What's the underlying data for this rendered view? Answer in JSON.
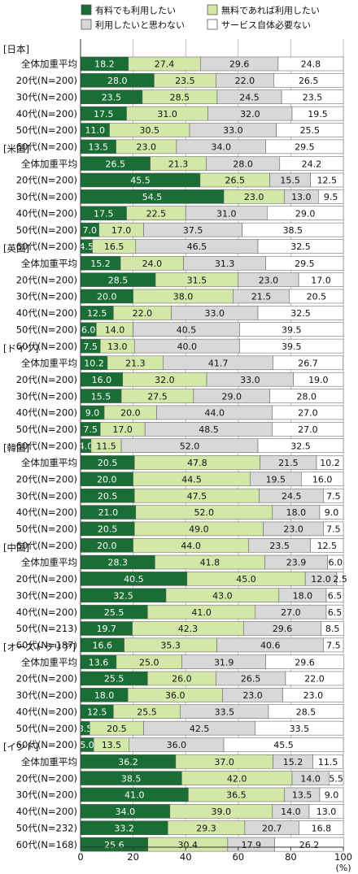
{
  "chart_data": {
    "type": "bar",
    "stacked": true,
    "orientation": "horizontal",
    "xlim": [
      0,
      100
    ],
    "xticks": [
      "0",
      "20",
      "40",
      "60",
      "80",
      "100"
    ],
    "xunit": "(%)",
    "legend_position": "top",
    "series": [
      {
        "name": "有料でも利用したい",
        "color": "#1a6e35"
      },
      {
        "name": "無料であれば利用したい",
        "color": "#d3e8a8"
      },
      {
        "name": "利用したいと思わない",
        "color": "#d8d8d8"
      },
      {
        "name": "サービス自体必要ない",
        "color": "#ffffff"
      }
    ],
    "groups": [
      {
        "name": "[日本]",
        "rows": [
          {
            "label": "全体加重平均",
            "values": [
              18.2,
              27.4,
              29.6,
              24.8
            ],
            "texts": [
              "18.2",
              "27.4",
              "29.6",
              "24.8"
            ]
          },
          {
            "label": "20代(N=200)",
            "values": [
              28.0,
              23.5,
              22.0,
              26.5
            ],
            "texts": [
              "28.0",
              "23.5",
              "22.0",
              "26.5"
            ]
          },
          {
            "label": "30代(N=200)",
            "values": [
              23.5,
              28.5,
              24.5,
              23.5
            ],
            "texts": [
              "23.5",
              "28.5",
              "24.5",
              "23.5"
            ]
          },
          {
            "label": "40代(N=200)",
            "values": [
              17.5,
              31.0,
              32.0,
              19.5
            ],
            "texts": [
              "17.5",
              "31.0",
              "32.0",
              "19.5"
            ]
          },
          {
            "label": "50代(N=200)",
            "values": [
              11.0,
              30.5,
              33.0,
              25.5
            ],
            "texts": [
              "11.0",
              "30.5",
              "33.0",
              "25.5"
            ]
          },
          {
            "label": "60代(N=200)",
            "values": [
              13.5,
              23.0,
              34.0,
              29.5
            ],
            "texts": [
              "13.5",
              "23.0",
              "34.0",
              "29.5"
            ]
          }
        ]
      },
      {
        "name": "[米国]",
        "rows": [
          {
            "label": "全体加重平均",
            "values": [
              26.5,
              21.3,
              28.0,
              24.2
            ],
            "texts": [
              "26.5",
              "21.3",
              "28.0",
              "24.2"
            ]
          },
          {
            "label": "20代(N=200)",
            "values": [
              45.5,
              26.5,
              15.5,
              12.5
            ],
            "texts": [
              "45.5",
              "26.5",
              "15.5",
              "12.5"
            ]
          },
          {
            "label": "30代(N=200)",
            "values": [
              54.5,
              23.0,
              13.0,
              9.5
            ],
            "texts": [
              "54.5",
              "23.0",
              "13.0",
              "9.5"
            ]
          },
          {
            "label": "40代(N=200)",
            "values": [
              17.5,
              22.5,
              31.0,
              29.0
            ],
            "texts": [
              "17.5",
              "22.5",
              "31.0",
              "29.0"
            ]
          },
          {
            "label": "50代(N=200)",
            "values": [
              7.0,
              17.0,
              37.5,
              38.5
            ],
            "texts": [
              "7.0",
              "17.0",
              "37.5",
              "38.5"
            ]
          },
          {
            "label": "60代(N=200)",
            "values": [
              4.5,
              16.5,
              46.5,
              32.5
            ],
            "texts": [
              "4.5",
              "16.5",
              "46.5",
              "32.5"
            ]
          }
        ]
      },
      {
        "name": "[英国]",
        "rows": [
          {
            "label": "全体加重平均",
            "values": [
              15.2,
              24.0,
              31.3,
              29.5
            ],
            "texts": [
              "15.2",
              "24.0",
              "31.3",
              "29.5"
            ]
          },
          {
            "label": "20代(N=200)",
            "values": [
              28.5,
              31.5,
              23.0,
              17.0
            ],
            "texts": [
              "28.5",
              "31.5",
              "23.0",
              "17.0"
            ]
          },
          {
            "label": "30代(N=200)",
            "values": [
              20.0,
              38.0,
              21.5,
              20.5
            ],
            "texts": [
              "20.0",
              "38.0",
              "21.5",
              "20.5"
            ]
          },
          {
            "label": "40代(N=200)",
            "values": [
              12.5,
              22.0,
              33.0,
              32.5
            ],
            "texts": [
              "12.5",
              "22.0",
              "33.0",
              "32.5"
            ]
          },
          {
            "label": "50代(N=200)",
            "values": [
              6.0,
              14.0,
              40.5,
              39.5
            ],
            "texts": [
              "6.0",
              "14.0",
              "40.5",
              "39.5"
            ]
          },
          {
            "label": "60代(N=200)",
            "values": [
              7.5,
              13.0,
              40.0,
              39.5
            ],
            "texts": [
              "7.5",
              "13.0",
              "40.0",
              "39.5"
            ]
          }
        ]
      },
      {
        "name": "[ドイツ]",
        "rows": [
          {
            "label": "全体加重平均",
            "values": [
              10.2,
              21.3,
              41.7,
              26.7
            ],
            "texts": [
              "10.2",
              "21.3",
              "41.7",
              "26.7"
            ]
          },
          {
            "label": "20代(N=200)",
            "values": [
              16.0,
              32.0,
              33.0,
              19.0
            ],
            "texts": [
              "16.0",
              "32.0",
              "33.0",
              "19.0"
            ]
          },
          {
            "label": "30代(N=200)",
            "values": [
              15.5,
              27.5,
              29.0,
              28.0
            ],
            "texts": [
              "15.5",
              "27.5",
              "29.0",
              "28.0"
            ]
          },
          {
            "label": "40代(N=200)",
            "values": [
              9.0,
              20.0,
              44.0,
              27.0
            ],
            "texts": [
              "9.0",
              "20.0",
              "44.0",
              "27.0"
            ]
          },
          {
            "label": "50代(N=200)",
            "values": [
              7.5,
              17.0,
              48.5,
              27.0
            ],
            "texts": [
              "7.5",
              "17.0",
              "48.5",
              "27.0"
            ]
          },
          {
            "label": "60代(N=200)",
            "values": [
              4.0,
              11.5,
              52.0,
              32.5
            ],
            "texts": [
              "4.0",
              "11.5",
              "52.0",
              "32.5"
            ]
          }
        ]
      },
      {
        "name": "[韓国]",
        "rows": [
          {
            "label": "全体加重平均",
            "values": [
              20.5,
              47.8,
              21.5,
              10.2
            ],
            "texts": [
              "20.5",
              "47.8",
              "21.5",
              "10.2"
            ]
          },
          {
            "label": "20代(N=200)",
            "values": [
              20.0,
              44.5,
              19.5,
              16.0
            ],
            "texts": [
              "20.0",
              "44.5",
              "19.5",
              "16.0"
            ]
          },
          {
            "label": "30代(N=200)",
            "values": [
              20.5,
              47.5,
              24.5,
              7.5
            ],
            "texts": [
              "20.5",
              "47.5",
              "24.5",
              "7.5"
            ]
          },
          {
            "label": "40代(N=200)",
            "values": [
              21.0,
              52.0,
              18.0,
              9.0
            ],
            "texts": [
              "21.0",
              "52.0",
              "18.0",
              "9.0"
            ]
          },
          {
            "label": "50代(N=200)",
            "values": [
              20.5,
              49.0,
              23.0,
              7.5
            ],
            "texts": [
              "20.5",
              "49.0",
              "23.0",
              "7.5"
            ]
          },
          {
            "label": "60代(N=200)",
            "values": [
              20.0,
              44.0,
              23.5,
              12.5
            ],
            "texts": [
              "20.0",
              "44.0",
              "23.5",
              "12.5"
            ]
          }
        ]
      },
      {
        "name": "[中国]",
        "rows": [
          {
            "label": "全体加重平均",
            "values": [
              28.3,
              41.8,
              23.9,
              6.0
            ],
            "texts": [
              "28.3",
              "41.8",
              "23.9",
              "6.0"
            ]
          },
          {
            "label": "20代(N=200)",
            "values": [
              40.5,
              45.0,
              12.0,
              2.5
            ],
            "texts": [
              "40.5",
              "45.0",
              "12.0",
              "2.5"
            ]
          },
          {
            "label": "30代(N=200)",
            "values": [
              32.5,
              43.0,
              18.0,
              6.5
            ],
            "texts": [
              "32.5",
              "43.0",
              "18.0",
              "6.5"
            ]
          },
          {
            "label": "40代(N=200)",
            "values": [
              25.5,
              41.0,
              27.0,
              6.5
            ],
            "texts": [
              "25.5",
              "41.0",
              "27.0",
              "6.5"
            ]
          },
          {
            "label": "50代(N=213)",
            "values": [
              19.7,
              42.3,
              29.6,
              8.5
            ],
            "texts": [
              "19.7",
              "42.3",
              "29.6",
              "8.5"
            ]
          },
          {
            "label": "60代(N=187)",
            "values": [
              16.6,
              35.3,
              40.6,
              7.5
            ],
            "texts": [
              "16.6",
              "35.3",
              "40.6",
              "7.5"
            ]
          }
        ]
      },
      {
        "name": "[オーストラリア]",
        "rows": [
          {
            "label": "全体加重平均",
            "values": [
              13.6,
              25.0,
              31.9,
              29.6
            ],
            "texts": [
              "13.6",
              "25.0",
              "31.9",
              "29.6"
            ]
          },
          {
            "label": "20代(N=200)",
            "values": [
              25.5,
              26.0,
              26.5,
              22.0
            ],
            "texts": [
              "25.5",
              "26.0",
              "26.5",
              "22.0"
            ]
          },
          {
            "label": "30代(N=200)",
            "values": [
              18.0,
              36.0,
              23.0,
              23.0
            ],
            "texts": [
              "18.0",
              "36.0",
              "23.0",
              "23.0"
            ]
          },
          {
            "label": "40代(N=200)",
            "values": [
              12.5,
              25.5,
              33.5,
              28.5
            ],
            "texts": [
              "12.5",
              "25.5",
              "33.5",
              "28.5"
            ]
          },
          {
            "label": "50代(N=200)",
            "values": [
              3.5,
              20.5,
              42.5,
              33.5
            ],
            "texts": [
              "3.5",
              "20.5",
              "42.5",
              "33.5"
            ]
          },
          {
            "label": "60代(N=200)",
            "values": [
              5.0,
              13.5,
              36.0,
              45.5
            ],
            "texts": [
              "5.0",
              "13.5",
              "36.0",
              "45.5"
            ]
          }
        ]
      },
      {
        "name": "[インド]",
        "rows": [
          {
            "label": "全体加重平均",
            "values": [
              36.2,
              37.0,
              15.2,
              11.5
            ],
            "texts": [
              "36.2",
              "37.0",
              "15.2",
              "11.5"
            ]
          },
          {
            "label": "20代(N=200)",
            "values": [
              38.5,
              42.0,
              14.0,
              5.5
            ],
            "texts": [
              "38.5",
              "42.0",
              "14.0",
              "5.5"
            ]
          },
          {
            "label": "30代(N=200)",
            "values": [
              41.0,
              36.5,
              13.5,
              9.0
            ],
            "texts": [
              "41.0",
              "36.5",
              "13.5",
              "9.0"
            ]
          },
          {
            "label": "40代(N=200)",
            "values": [
              34.0,
              39.0,
              14.0,
              13.0
            ],
            "texts": [
              "34.0",
              "39.0",
              "14.0",
              "13.0"
            ]
          },
          {
            "label": "50代(N=232)",
            "values": [
              33.2,
              29.3,
              20.7,
              16.8
            ],
            "texts": [
              "33.2",
              "29.3",
              "20.7",
              "16.8"
            ]
          },
          {
            "label": "60代(N=168)",
            "values": [
              25.6,
              30.4,
              17.9,
              26.2
            ],
            "texts": [
              "25.6",
              "30.4",
              "17.9",
              "26.2"
            ]
          }
        ]
      }
    ]
  }
}
